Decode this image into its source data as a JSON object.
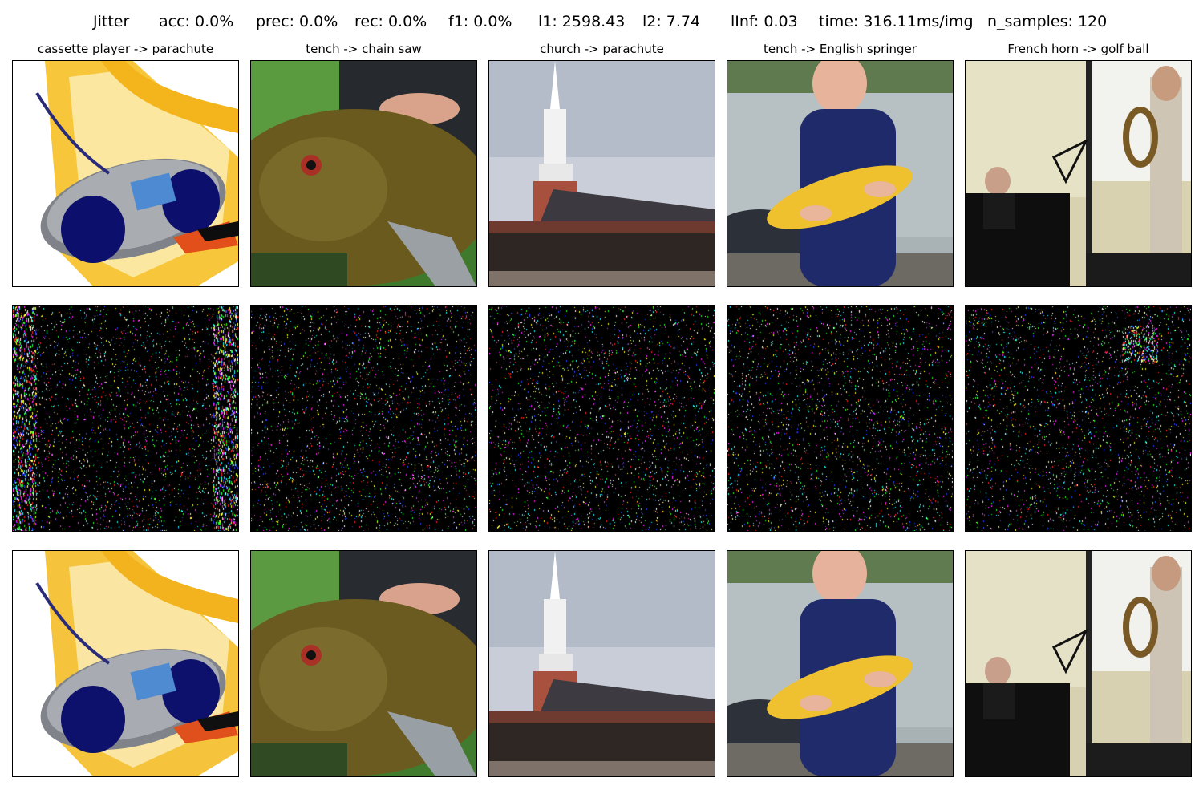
{
  "header": {
    "method": "Jitter",
    "acc": "acc: 0.0%",
    "prec": "prec: 0.0%",
    "rec": "rec: 0.0%",
    "f1": "f1: 0.0%",
    "l1": "l1: 2598.43",
    "l2": "l2: 7.74",
    "linf": "lInf: 0.03",
    "time": "time: 316.11ms/img",
    "n_samples": "n_samples: 120"
  },
  "columns": [
    {
      "title": "cassette player -> parachute",
      "image": "cassette player (boombox) clipart on yellow paper"
    },
    {
      "title": "tench -> chain saw",
      "image": "hand holding a tench fish"
    },
    {
      "title": "church -> parachute",
      "image": "white church steeple on red brick building"
    },
    {
      "title": "tench -> English springer",
      "image": "boy holding a golden tench by a lake"
    },
    {
      "title": "French horn -> golf ball",
      "image": "man playing French horn, pianist at piano"
    }
  ],
  "rows": [
    "original",
    "perturbation",
    "adversarial"
  ],
  "colors": {
    "background": "#ffffff",
    "noise_bg": "#000000",
    "frame": "#000000"
  }
}
